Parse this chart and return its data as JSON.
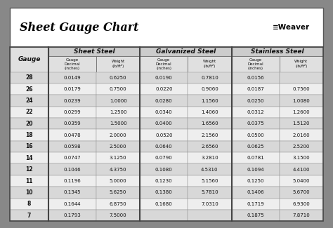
{
  "title": "Sheet Gauge Chart",
  "bg_outer": "#888888",
  "bg_title": "#ffffff",
  "bg_table": "#ffffff",
  "gauges": [
    28,
    26,
    24,
    22,
    20,
    18,
    16,
    14,
    12,
    11,
    10,
    8,
    7
  ],
  "sheet_steel_decimal": [
    "0.0149",
    "0.0179",
    "0.0239",
    "0.0299",
    "0.0359",
    "0.0478",
    "0.0598",
    "0.0747",
    "0.1046",
    "0.1196",
    "0.1345",
    "0.1644",
    "0.1793"
  ],
  "sheet_steel_weight": [
    "0.6250",
    "0.7500",
    "1.0000",
    "1.2500",
    "1.5000",
    "2.0000",
    "2.5000",
    "3.1250",
    "4.3750",
    "5.0000",
    "5.6250",
    "6.8750",
    "7.5000"
  ],
  "galv_steel_decimal": [
    "0.0190",
    "0.0220",
    "0.0280",
    "0.0340",
    "0.0400",
    "0.0520",
    "0.0640",
    "0.0790",
    "0.1080",
    "0.1230",
    "0.1380",
    "0.1680",
    ""
  ],
  "galv_steel_weight": [
    "0.7810",
    "0.9060",
    "1.1560",
    "1.4060",
    "1.6560",
    "2.1560",
    "2.6560",
    "3.2810",
    "4.5310",
    "5.1560",
    "5.7810",
    "7.0310",
    ""
  ],
  "stainless_decimal": [
    "0.0156",
    "0.0187",
    "0.0250",
    "0.0312",
    "0.0375",
    "0.0500",
    "0.0625",
    "0.0781",
    "0.1094",
    "0.1250",
    "0.1406",
    "0.1719",
    "0.1875"
  ],
  "stainless_weight": [
    "",
    "0.7560",
    "1.0080",
    "1.2600",
    "1.5120",
    "2.0160",
    "2.5200",
    "3.1500",
    "4.4100",
    "5.0400",
    "5.6700",
    "6.9300",
    "7.8710"
  ],
  "row_colors": [
    "#d8d8d8",
    "#eeeeee",
    "#d8d8d8",
    "#eeeeee",
    "#d8d8d8",
    "#eeeeee",
    "#d8d8d8",
    "#eeeeee",
    "#d8d8d8",
    "#eeeeee",
    "#d8d8d8",
    "#eeeeee",
    "#d8d8d8"
  ],
  "header1_color": "#cccccc",
  "header2_color": "#e0e0e0"
}
